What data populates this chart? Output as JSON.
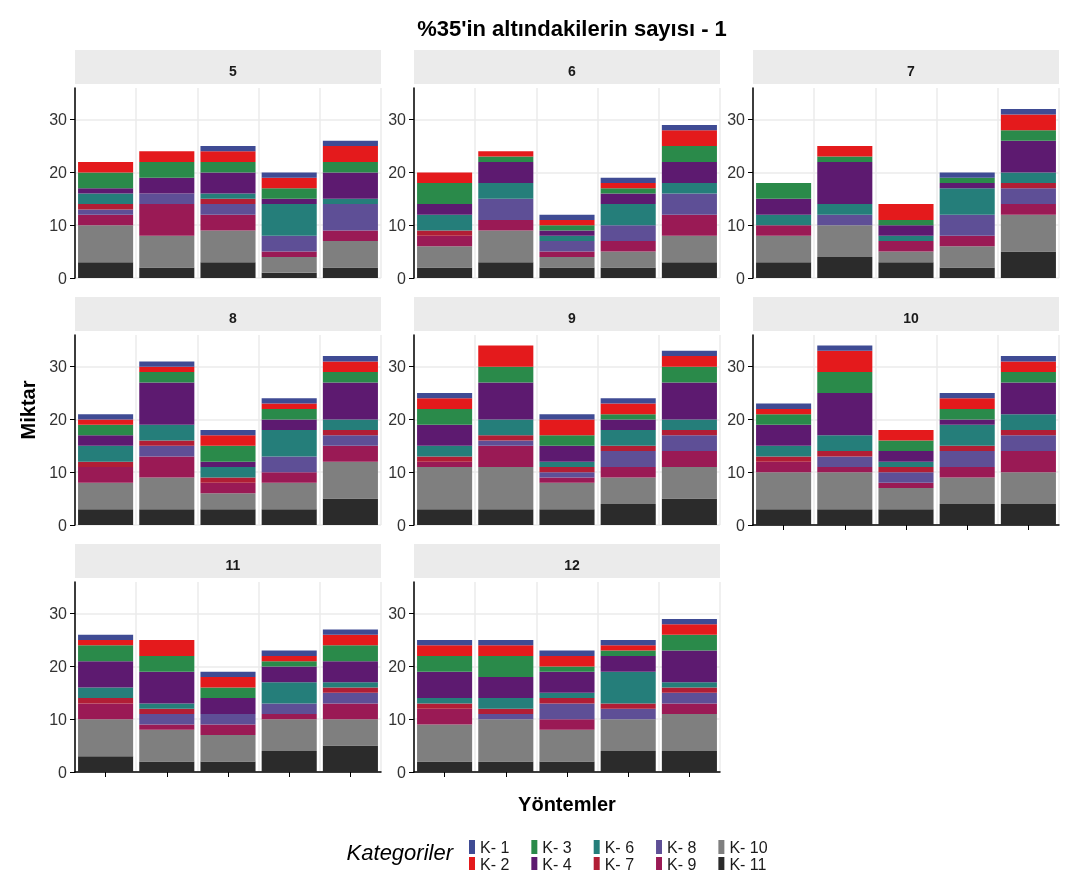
{
  "chart_data": [
    {
      "type": "bar",
      "subtitle": "5",
      "stacked": true,
      "grid": true,
      "tick_labels": "y",
      "ylim": [
        0,
        36
      ],
      "yticks": [
        0,
        10,
        20,
        30
      ],
      "categories": [
        null,
        null,
        null,
        null,
        null
      ],
      "series": [
        {
          "color": "#2b2b2b",
          "values": [
            3,
            2,
            3,
            1,
            2
          ]
        },
        {
          "color": "#7f7f7f",
          "values": [
            7,
            6,
            6,
            3,
            5
          ]
        },
        {
          "color": "#9a1a55",
          "values": [
            2,
            6,
            3,
            1,
            2
          ]
        },
        {
          "color": "#5e4f96",
          "values": [
            1,
            2,
            2,
            3,
            5
          ]
        },
        {
          "color": "#b11e35",
          "values": [
            1,
            0,
            1,
            0,
            0
          ]
        },
        {
          "color": "#257e7a",
          "values": [
            2,
            0,
            1,
            6,
            1
          ]
        },
        {
          "color": "#5d1a70",
          "values": [
            1,
            3,
            4,
            1,
            5
          ]
        },
        {
          "color": "#2a8a4a",
          "values": [
            3,
            3,
            2,
            2,
            2
          ]
        },
        {
          "color": "#e41a1c",
          "values": [
            2,
            2,
            2,
            2,
            3
          ]
        },
        {
          "color": "#3f4b94",
          "values": [
            0,
            0,
            1,
            1,
            1
          ]
        }
      ]
    },
    {
      "type": "bar",
      "title": "%35'in altındakilerin sayısı - 1",
      "subtitle": "6",
      "stacked": true,
      "grid": true,
      "tick_labels": "y",
      "ylim": [
        0,
        36
      ],
      "yticks": [
        0,
        10,
        20,
        30
      ],
      "categories": [
        null,
        null,
        null,
        null,
        null
      ],
      "series": [
        {
          "color": "#2b2b2b",
          "values": [
            2,
            3,
            2,
            2,
            3
          ]
        },
        {
          "color": "#7f7f7f",
          "values": [
            4,
            6,
            2,
            3,
            5
          ]
        },
        {
          "color": "#9a1a55",
          "values": [
            2,
            2,
            1,
            2,
            4
          ]
        },
        {
          "color": "#5e4f96",
          "values": [
            0,
            4,
            2,
            3,
            4
          ]
        },
        {
          "color": "#b11e35",
          "values": [
            1,
            0,
            0,
            0,
            0
          ]
        },
        {
          "color": "#257e7a",
          "values": [
            3,
            3,
            1,
            4,
            2
          ]
        },
        {
          "color": "#5d1a70",
          "values": [
            2,
            4,
            1,
            2,
            4
          ]
        },
        {
          "color": "#2a8a4a",
          "values": [
            4,
            1,
            1,
            1,
            3
          ]
        },
        {
          "color": "#e41a1c",
          "values": [
            2,
            1,
            1,
            1,
            3
          ]
        },
        {
          "color": "#3f4b94",
          "values": [
            0,
            0,
            1,
            1,
            1
          ]
        }
      ]
    },
    {
      "type": "bar",
      "subtitle": "7",
      "stacked": true,
      "grid": true,
      "tick_labels": "y",
      "ylim": [
        0,
        36
      ],
      "yticks": [
        0,
        10,
        20,
        30
      ],
      "categories": [
        null,
        null,
        null,
        null,
        null
      ],
      "series": [
        {
          "color": "#2b2b2b",
          "values": [
            3,
            4,
            3,
            2,
            5
          ]
        },
        {
          "color": "#7f7f7f",
          "values": [
            5,
            6,
            2,
            4,
            7
          ]
        },
        {
          "color": "#9a1a55",
          "values": [
            2,
            0,
            2,
            2,
            2
          ]
        },
        {
          "color": "#5e4f96",
          "values": [
            0,
            2,
            0,
            4,
            3
          ]
        },
        {
          "color": "#b11e35",
          "values": [
            0,
            0,
            0,
            0,
            1
          ]
        },
        {
          "color": "#257e7a",
          "values": [
            2,
            2,
            1,
            5,
            2
          ]
        },
        {
          "color": "#5d1a70",
          "values": [
            3,
            8,
            2,
            1,
            6
          ]
        },
        {
          "color": "#2a8a4a",
          "values": [
            3,
            1,
            1,
            1,
            2
          ]
        },
        {
          "color": "#e41a1c",
          "values": [
            0,
            2,
            3,
            0,
            3
          ]
        },
        {
          "color": "#3f4b94",
          "values": [
            0,
            0,
            0,
            1,
            1
          ]
        }
      ]
    },
    {
      "type": "bar",
      "subtitle": "8",
      "ylabel": "Miktar",
      "stacked": true,
      "grid": true,
      "tick_labels": "y",
      "ylim": [
        0,
        36
      ],
      "yticks": [
        0,
        10,
        20,
        30
      ],
      "categories": [
        null,
        null,
        null,
        null,
        null
      ],
      "series": [
        {
          "color": "#2b2b2b",
          "values": [
            3,
            3,
            3,
            3,
            5
          ]
        },
        {
          "color": "#7f7f7f",
          "values": [
            5,
            6,
            3,
            5,
            7
          ]
        },
        {
          "color": "#9a1a55",
          "values": [
            3,
            4,
            2,
            2,
            3
          ]
        },
        {
          "color": "#5e4f96",
          "values": [
            0,
            2,
            0,
            3,
            2
          ]
        },
        {
          "color": "#b11e35",
          "values": [
            1,
            1,
            1,
            0,
            1
          ]
        },
        {
          "color": "#257e7a",
          "values": [
            3,
            3,
            2,
            5,
            2
          ]
        },
        {
          "color": "#5d1a70",
          "values": [
            2,
            8,
            1,
            2,
            7
          ]
        },
        {
          "color": "#2a8a4a",
          "values": [
            2,
            2,
            3,
            2,
            2
          ]
        },
        {
          "color": "#e41a1c",
          "values": [
            1,
            1,
            2,
            1,
            2
          ]
        },
        {
          "color": "#3f4b94",
          "values": [
            1,
            1,
            1,
            1,
            1
          ]
        }
      ]
    },
    {
      "type": "bar",
      "subtitle": "9",
      "stacked": true,
      "grid": true,
      "tick_labels": "y",
      "ylim": [
        0,
        36
      ],
      "yticks": [
        0,
        10,
        20,
        30
      ],
      "categories": [
        null,
        null,
        null,
        null,
        null
      ],
      "series": [
        {
          "color": "#2b2b2b",
          "values": [
            3,
            3,
            3,
            4,
            5
          ]
        },
        {
          "color": "#7f7f7f",
          "values": [
            8,
            8,
            5,
            5,
            6
          ]
        },
        {
          "color": "#9a1a55",
          "values": [
            1,
            4,
            1,
            2,
            3
          ]
        },
        {
          "color": "#5e4f96",
          "values": [
            0,
            1,
            1,
            3,
            3
          ]
        },
        {
          "color": "#b11e35",
          "values": [
            1,
            1,
            1,
            1,
            1
          ]
        },
        {
          "color": "#257e7a",
          "values": [
            2,
            3,
            1,
            3,
            2
          ]
        },
        {
          "color": "#5d1a70",
          "values": [
            4,
            7,
            3,
            2,
            7
          ]
        },
        {
          "color": "#2a8a4a",
          "values": [
            3,
            3,
            2,
            1,
            3
          ]
        },
        {
          "color": "#e41a1c",
          "values": [
            2,
            4,
            3,
            2,
            2
          ]
        },
        {
          "color": "#3f4b94",
          "values": [
            1,
            0,
            1,
            1,
            1
          ]
        }
      ]
    },
    {
      "type": "bar",
      "subtitle": "10",
      "stacked": true,
      "grid": true,
      "tick_labels": "y",
      "ylim": [
        0,
        36
      ],
      "yticks": [
        0,
        10,
        20,
        30
      ],
      "categories": [
        null,
        null,
        null,
        null,
        null
      ],
      "series": [
        {
          "color": "#2b2b2b",
          "values": [
            3,
            3,
            3,
            4,
            4
          ]
        },
        {
          "color": "#7f7f7f",
          "values": [
            7,
            7,
            4,
            5,
            6
          ]
        },
        {
          "color": "#9a1a55",
          "values": [
            2,
            1,
            1,
            2,
            4
          ]
        },
        {
          "color": "#5e4f96",
          "values": [
            0,
            2,
            2,
            3,
            3
          ]
        },
        {
          "color": "#b11e35",
          "values": [
            1,
            1,
            1,
            1,
            1
          ]
        },
        {
          "color": "#257e7a",
          "values": [
            2,
            3,
            1,
            4,
            3
          ]
        },
        {
          "color": "#5d1a70",
          "values": [
            4,
            8,
            2,
            1,
            6
          ]
        },
        {
          "color": "#2a8a4a",
          "values": [
            2,
            4,
            2,
            2,
            2
          ]
        },
        {
          "color": "#e41a1c",
          "values": [
            1,
            4,
            2,
            2,
            2
          ]
        },
        {
          "color": "#3f4b94",
          "values": [
            1,
            1,
            0,
            1,
            1
          ]
        }
      ]
    },
    {
      "type": "bar",
      "subtitle": "11",
      "stacked": true,
      "grid": true,
      "tick_labels": "y",
      "ylim": [
        0,
        36
      ],
      "yticks": [
        0,
        10,
        20,
        30
      ],
      "categories": [
        null,
        null,
        null,
        null,
        null
      ],
      "series": [
        {
          "color": "#2b2b2b",
          "values": [
            3,
            2,
            2,
            4,
            5
          ]
        },
        {
          "color": "#7f7f7f",
          "values": [
            7,
            6,
            5,
            6,
            5
          ]
        },
        {
          "color": "#9a1a55",
          "values": [
            3,
            1,
            2,
            1,
            3
          ]
        },
        {
          "color": "#5e4f96",
          "values": [
            0,
            2,
            2,
            2,
            2
          ]
        },
        {
          "color": "#b11e35",
          "values": [
            1,
            1,
            0,
            0,
            1
          ]
        },
        {
          "color": "#257e7a",
          "values": [
            2,
            1,
            0,
            4,
            1
          ]
        },
        {
          "color": "#5d1a70",
          "values": [
            5,
            6,
            3,
            3,
            4
          ]
        },
        {
          "color": "#2a8a4a",
          "values": [
            3,
            3,
            2,
            1,
            3
          ]
        },
        {
          "color": "#e41a1c",
          "values": [
            1,
            3,
            2,
            1,
            2
          ]
        },
        {
          "color": "#3f4b94",
          "values": [
            1,
            0,
            1,
            1,
            1
          ]
        }
      ]
    },
    {
      "type": "bar",
      "subtitle": "12",
      "xlabel": "Yöntemler",
      "legend": "bottom",
      "legend_title": "Kategoriler",
      "stacked": true,
      "grid": true,
      "tick_labels": "y",
      "ylim": [
        0,
        36
      ],
      "yticks": [
        0,
        10,
        20,
        30
      ],
      "categories": [
        null,
        null,
        null,
        null,
        null
      ],
      "series": [
        {
          "name": "K- 11",
          "color": "#2b2b2b",
          "values": [
            2,
            2,
            2,
            4,
            4
          ]
        },
        {
          "name": "K- 10",
          "color": "#7f7f7f",
          "values": [
            7,
            8,
            6,
            6,
            7
          ]
        },
        {
          "name": "K- 9",
          "color": "#9a1a55",
          "values": [
            3,
            0,
            2,
            0,
            2
          ]
        },
        {
          "name": "K- 8",
          "color": "#5e4f96",
          "values": [
            0,
            1,
            3,
            2,
            2
          ]
        },
        {
          "name": "K- 7",
          "color": "#b11e35",
          "values": [
            1,
            1,
            1,
            1,
            1
          ]
        },
        {
          "name": "K- 6",
          "color": "#257e7a",
          "values": [
            1,
            2,
            1,
            6,
            1
          ]
        },
        {
          "name": "K- 4",
          "color": "#5d1a70",
          "values": [
            5,
            4,
            4,
            3,
            6
          ]
        },
        {
          "name": "K- 3",
          "color": "#2a8a4a",
          "values": [
            3,
            4,
            1,
            1,
            3
          ]
        },
        {
          "name": "K- 2",
          "color": "#e41a1c",
          "values": [
            2,
            2,
            2,
            1,
            2
          ]
        },
        {
          "name": "K- 1",
          "color": "#3f4b94",
          "values": [
            1,
            1,
            1,
            1,
            1
          ]
        }
      ]
    }
  ]
}
